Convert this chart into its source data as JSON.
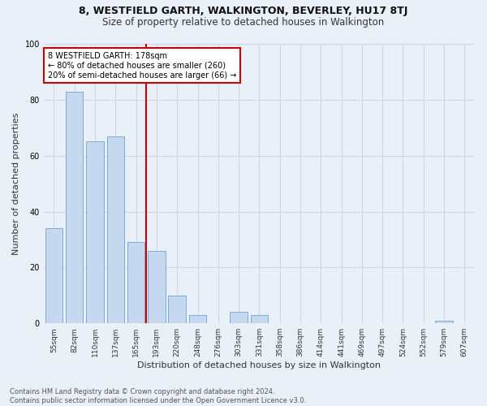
{
  "title1": "8, WESTFIELD GARTH, WALKINGTON, BEVERLEY, HU17 8TJ",
  "title2": "Size of property relative to detached houses in Walkington",
  "xlabel": "Distribution of detached houses by size in Walkington",
  "ylabel": "Number of detached properties",
  "footnote1": "Contains HM Land Registry data © Crown copyright and database right 2024.",
  "footnote2": "Contains public sector information licensed under the Open Government Licence v3.0.",
  "bar_labels": [
    "55sqm",
    "82sqm",
    "110sqm",
    "137sqm",
    "165sqm",
    "193sqm",
    "220sqm",
    "248sqm",
    "276sqm",
    "303sqm",
    "331sqm",
    "358sqm",
    "386sqm",
    "414sqm",
    "441sqm",
    "469sqm",
    "497sqm",
    "524sqm",
    "552sqm",
    "579sqm",
    "607sqm"
  ],
  "bar_values": [
    34,
    83,
    65,
    67,
    29,
    26,
    10,
    3,
    0,
    4,
    3,
    0,
    0,
    0,
    0,
    0,
    0,
    0,
    0,
    1,
    0
  ],
  "bar_color": "#c5d8f0",
  "bar_edge_color": "#7aadd4",
  "grid_color": "#c8d8e8",
  "background_color": "#eaf0f8",
  "vline_x": 4.5,
  "vline_color": "#cc0000",
  "annotation_text": "8 WESTFIELD GARTH: 178sqm\n← 80% of detached houses are smaller (260)\n20% of semi-detached houses are larger (66) →",
  "annotation_box_color": "#cc0000",
  "ylim": [
    0,
    100
  ],
  "title1_fontsize": 9,
  "title2_fontsize": 8.5,
  "ylabel_fontsize": 8,
  "xlabel_fontsize": 8,
  "footnote_fontsize": 6,
  "annot_fontsize": 7,
  "tick_fontsize": 6.5
}
